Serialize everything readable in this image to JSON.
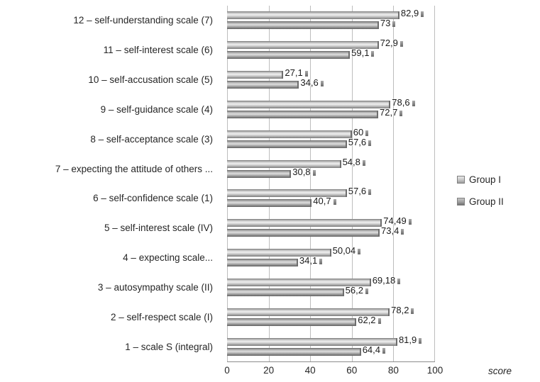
{
  "chart_data": {
    "type": "bar",
    "orientation": "horizontal",
    "title": "",
    "xlabel": "score",
    "ylabel": "",
    "xlim": [
      0,
      100
    ],
    "x_ticks": [
      "0",
      "20",
      "40",
      "60",
      "80",
      "100"
    ],
    "grid": true,
    "legend_position": "right",
    "categories": [
      "12 – self-understanding scale (7)",
      "11 – self-interest scale (6)",
      "10 – self-accusation scale (5)",
      "9 – self-guidance scale (4)",
      "8 – self-acceptance scale (3)",
      "7 – expecting the attitude of others ...",
      "6 – self-confidence scale (1)",
      "5 – self-interest scale  (IV)",
      "4 – expecting scale...",
      "3 – autosympathy scale (II)",
      "2 – self-respect scale (I)",
      "1 – scale S (integral)"
    ],
    "series": [
      {
        "name": "Group I",
        "color": "#c9c9c9",
        "values": [
          82.9,
          72.9,
          27.1,
          78.6,
          60,
          54.8,
          57.6,
          74.49,
          50.04,
          69.18,
          78.2,
          81.9
        ],
        "labels": [
          "82,9",
          "72,9",
          "27,1",
          "78,6",
          "60",
          "54,8",
          "57,6",
          "74,49",
          "50,04",
          "69,18",
          "78,2",
          "81,9"
        ]
      },
      {
        "name": "Group II",
        "color": "#a2a2a2",
        "values": [
          73,
          59.1,
          34.6,
          72.7,
          57.6,
          30.8,
          40.7,
          73.4,
          34.1,
          56.2,
          62.2,
          64.4
        ],
        "labels": [
          "73",
          "59,1",
          "34,6",
          "72,7",
          "57,6",
          "30,8",
          "40,7",
          "73,4",
          "34,1",
          "56,2",
          "62,2",
          "64,4"
        ]
      }
    ]
  }
}
